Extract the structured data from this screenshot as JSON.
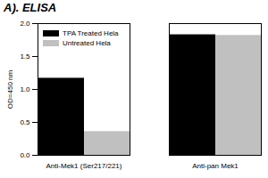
{
  "chart_data": {
    "type": "bar",
    "title": "A). ELISA",
    "y_label": "OD=450 nm",
    "categories": [
      "Anti-Mek1 (Ser217/221)",
      "Anti-pan Mek1"
    ],
    "series": [
      {
        "name": "TPA Treated Hela",
        "color": "#000000",
        "values": [
          1.17,
          1.83
        ]
      },
      {
        "name": "Untreated Hela",
        "color": "#c0c0c0",
        "values": [
          0.36,
          1.82
        ]
      }
    ],
    "ylim": [
      0,
      2
    ],
    "yticks": [
      {
        "value": 0,
        "label": "0.0"
      },
      {
        "value": 0.5,
        "label": "0.5"
      },
      {
        "value": 1,
        "label": "1.0"
      },
      {
        "value": 1.5,
        "label": "1.5"
      },
      {
        "value": 2,
        "label": "2.0"
      }
    ],
    "grid": false,
    "legend": "top-left"
  }
}
